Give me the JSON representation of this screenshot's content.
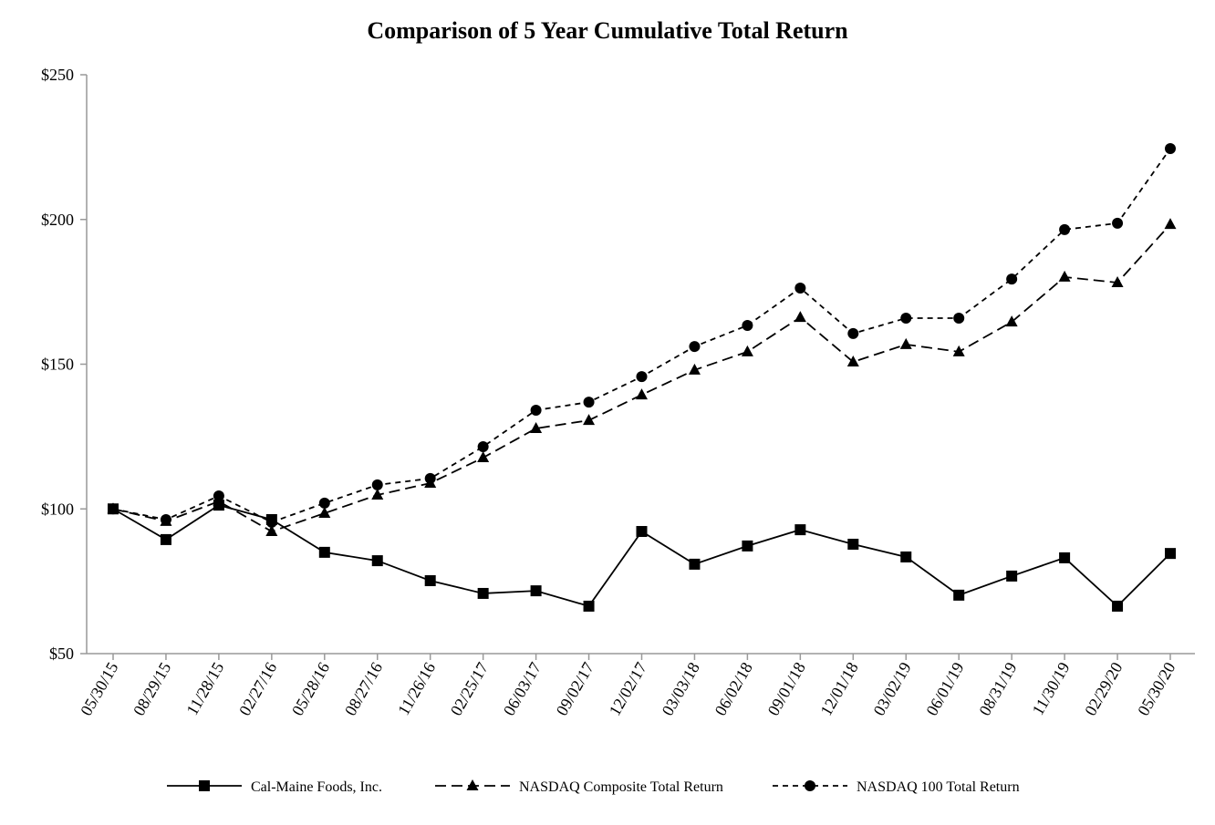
{
  "chart_data": {
    "type": "line",
    "title": "Comparison of 5 Year Cumulative Total Return",
    "xlabel": "",
    "ylabel": "",
    "ylim": [
      50,
      250
    ],
    "yticks": [
      "$50",
      "$100",
      "$150",
      "$200",
      "$250"
    ],
    "ytick_values": [
      50,
      100,
      150,
      200,
      250
    ],
    "grid": false,
    "legend_position": "bottom",
    "categories": [
      "05/30/15",
      "08/29/15",
      "11/28/15",
      "02/27/16",
      "05/28/16",
      "08/27/16",
      "11/26/16",
      "02/25/17",
      "06/03/17",
      "09/02/17",
      "12/02/17",
      "03/03/18",
      "06/02/18",
      "09/01/18",
      "12/01/18",
      "03/02/19",
      "06/01/19",
      "08/31/19",
      "11/30/19",
      "02/29/20",
      "05/30/20"
    ],
    "series": [
      {
        "name": "Cal-Maine Foods, Inc.",
        "marker": "square",
        "dash": "solid",
        "color": "#000000",
        "values": [
          100,
          89.4,
          101.3,
          96.3,
          85.0,
          82.1,
          75.2,
          70.8,
          71.7,
          66.4,
          92.2,
          80.9,
          87.2,
          92.8,
          87.8,
          83.4,
          70.2,
          76.8,
          83.1,
          66.4,
          84.6
        ]
      },
      {
        "name": "NASDAQ Composite Total Return",
        "marker": "triangle",
        "dash": "long-dash",
        "color": "#000000",
        "values": [
          100,
          95.7,
          102.6,
          92.2,
          98.5,
          104.8,
          108.9,
          117.7,
          127.8,
          130.6,
          139.4,
          148.0,
          154.3,
          166.2,
          150.8,
          156.8,
          154.3,
          164.6,
          180.1,
          178.2,
          198.3
        ]
      },
      {
        "name": "NASDAQ 100 Total Return",
        "marker": "circle",
        "dash": "short-dash",
        "color": "#000000",
        "values": [
          100,
          96.3,
          104.5,
          95.4,
          102.0,
          108.3,
          110.5,
          121.5,
          134.1,
          136.9,
          145.7,
          156.1,
          163.4,
          176.3,
          160.6,
          165.9,
          165.9,
          179.4,
          196.5,
          198.7,
          224.5
        ]
      }
    ]
  }
}
